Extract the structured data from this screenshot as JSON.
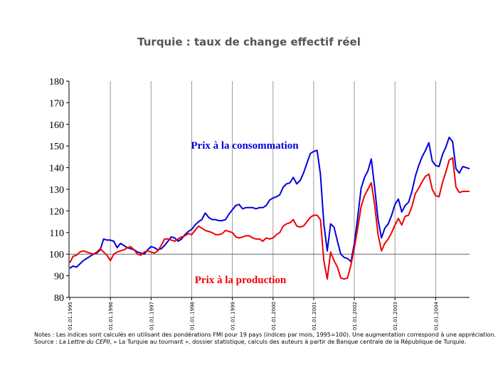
{
  "title": "Turquie : taux de change effectif réel",
  "notes": {
    "line1": "Notes : Les indices sont calculés en utilisant des pondérations FMI pour 19 pays (indices par mois, 1995=100). Une augmentation correspond à une appréciation.",
    "line2_prefix": "Source : ",
    "line2_source": "La Lettre du CEPII",
    "line2_rest": ", « La Turquie au  tournant »,  dossier statistique, calculs des auteurs à partir de Banque centrale de la République de Turquie."
  },
  "chart_data": {
    "type": "line",
    "title": "Turquie : taux de change effectif réel",
    "xlabel": "",
    "ylabel": "",
    "ylim": [
      80,
      180
    ],
    "xlim": [
      "1995-01",
      "2004-11"
    ],
    "yticks": [
      "80",
      "90",
      "100",
      "110",
      "120",
      "130",
      "140",
      "150",
      "160",
      "170",
      "180"
    ],
    "xticks": [
      {
        "date": "1995-01",
        "label": "01.01.1995"
      },
      {
        "date": "1996-01",
        "label": "01.01.1996"
      },
      {
        "date": "1997-01",
        "label": "01.01.1997"
      },
      {
        "date": "1998-01",
        "label": "01.01.1998"
      },
      {
        "date": "1999-01",
        "label": "01.01.1999"
      },
      {
        "date": "2000-01",
        "label": "01.01.2000"
      },
      {
        "date": "2001-01",
        "label": "01.01.2001"
      },
      {
        "date": "2002-01",
        "label": "01.01.2002"
      },
      {
        "date": "2003-01",
        "label": "01.01.2003"
      },
      {
        "date": "2004-01",
        "label": "01.01.2004"
      }
    ],
    "reference_line": 100,
    "grid": "vertical lines at year ticks",
    "series": [
      {
        "name": "Prix à la consommation",
        "color": "#0000dd",
        "points": [
          [
            "1995-01",
            93.5
          ],
          [
            "1995-02",
            94.5
          ],
          [
            "1995-03",
            94
          ],
          [
            "1995-04",
            95.5
          ],
          [
            "1995-05",
            97
          ],
          [
            "1995-06",
            98
          ],
          [
            "1995-07",
            99
          ],
          [
            "1995-08",
            100
          ],
          [
            "1995-09",
            100.5
          ],
          [
            "1995-10",
            102
          ],
          [
            "1995-11",
            107
          ],
          [
            "1995-12",
            106.5
          ],
          [
            "1996-01",
            106.5
          ],
          [
            "1996-02",
            106
          ],
          [
            "1996-03",
            103
          ],
          [
            "1996-04",
            105
          ],
          [
            "1996-05",
            104
          ],
          [
            "1996-06",
            103
          ],
          [
            "1996-07",
            102.5
          ],
          [
            "1996-08",
            102
          ],
          [
            "1996-09",
            101
          ],
          [
            "1996-10",
            100.5
          ],
          [
            "1996-11",
            100
          ],
          [
            "1996-12",
            102
          ],
          [
            "1997-01",
            103.5
          ],
          [
            "1997-02",
            103
          ],
          [
            "1997-03",
            102
          ],
          [
            "1997-04",
            102.5
          ],
          [
            "1997-05",
            104
          ],
          [
            "1997-06",
            106
          ],
          [
            "1997-07",
            108
          ],
          [
            "1997-08",
            107.5
          ],
          [
            "1997-09",
            106
          ],
          [
            "1997-10",
            107
          ],
          [
            "1997-11",
            109
          ],
          [
            "1997-12",
            110.5
          ],
          [
            "1998-01",
            111.5
          ],
          [
            "1998-02",
            113.5
          ],
          [
            "1998-03",
            115
          ],
          [
            "1998-04",
            116
          ],
          [
            "1998-05",
            119
          ],
          [
            "1998-06",
            117
          ],
          [
            "1998-07",
            116
          ],
          [
            "1998-08",
            116
          ],
          [
            "1998-09",
            115.5
          ],
          [
            "1998-10",
            115.5
          ],
          [
            "1998-11",
            116
          ],
          [
            "1998-12",
            118.5
          ],
          [
            "1999-01",
            120.5
          ],
          [
            "1999-02",
            122.5
          ],
          [
            "1999-03",
            123
          ],
          [
            "1999-04",
            121
          ],
          [
            "1999-05",
            121.5
          ],
          [
            "1999-06",
            121.5
          ],
          [
            "1999-07",
            121.5
          ],
          [
            "1999-08",
            121
          ],
          [
            "1999-09",
            121.5
          ],
          [
            "1999-10",
            121.5
          ],
          [
            "1999-11",
            122.5
          ],
          [
            "1999-12",
            125
          ],
          [
            "2000-01",
            126
          ],
          [
            "2000-02",
            126.5
          ],
          [
            "2000-03",
            127.5
          ],
          [
            "2000-04",
            131
          ],
          [
            "2000-05",
            132.5
          ],
          [
            "2000-06",
            133
          ],
          [
            "2000-07",
            135.5
          ],
          [
            "2000-08",
            132.5
          ],
          [
            "2000-09",
            134
          ],
          [
            "2000-10",
            137.5
          ],
          [
            "2000-11",
            142
          ],
          [
            "2000-12",
            146.5
          ],
          [
            "2001-01",
            147.5
          ],
          [
            "2001-02",
            148
          ],
          [
            "2001-03",
            137
          ],
          [
            "2001-04",
            114
          ],
          [
            "2001-05",
            101.5
          ],
          [
            "2001-06",
            114
          ],
          [
            "2001-07",
            112.5
          ],
          [
            "2001-08",
            106
          ],
          [
            "2001-09",
            100
          ],
          [
            "2001-10",
            98.5
          ],
          [
            "2001-11",
            98
          ],
          [
            "2001-12",
            96.5
          ],
          [
            "2002-01",
            105
          ],
          [
            "2002-02",
            117
          ],
          [
            "2002-03",
            130.5
          ],
          [
            "2002-04",
            135.5
          ],
          [
            "2002-05",
            138.5
          ],
          [
            "2002-06",
            144
          ],
          [
            "2002-07",
            131
          ],
          [
            "2002-08",
            116
          ],
          [
            "2002-09",
            107.5
          ],
          [
            "2002-10",
            112
          ],
          [
            "2002-11",
            114
          ],
          [
            "2002-12",
            118
          ],
          [
            "2003-01",
            123
          ],
          [
            "2003-02",
            125.5
          ],
          [
            "2003-03",
            119.5
          ],
          [
            "2003-04",
            122.5
          ],
          [
            "2003-05",
            124
          ],
          [
            "2003-06",
            129
          ],
          [
            "2003-07",
            136
          ],
          [
            "2003-08",
            141
          ],
          [
            "2003-09",
            145
          ],
          [
            "2003-10",
            148
          ],
          [
            "2003-11",
            151.5
          ],
          [
            "2003-12",
            143
          ],
          [
            "2004-01",
            141
          ],
          [
            "2004-02",
            140.5
          ],
          [
            "2004-03",
            146
          ],
          [
            "2004-04",
            149.5
          ],
          [
            "2004-05",
            154
          ],
          [
            "2004-06",
            152
          ],
          [
            "2004-07",
            139.5
          ],
          [
            "2004-08",
            137.5
          ],
          [
            "2004-09",
            140.5
          ],
          [
            "2004-10",
            140
          ],
          [
            "2004-11",
            139.5
          ]
        ]
      },
      {
        "name": "Prix à la production",
        "color": "#ee0000",
        "points": [
          [
            "1995-01",
            96
          ],
          [
            "1995-02",
            99
          ],
          [
            "1995-03",
            99.5
          ],
          [
            "1995-04",
            101
          ],
          [
            "1995-05",
            101.5
          ],
          [
            "1995-06",
            101
          ],
          [
            "1995-07",
            100.5
          ],
          [
            "1995-08",
            100
          ],
          [
            "1995-09",
            101
          ],
          [
            "1995-10",
            102.5
          ],
          [
            "1995-11",
            101
          ],
          [
            "1995-12",
            99.5
          ],
          [
            "1996-01",
            97
          ],
          [
            "1996-02",
            100
          ],
          [
            "1996-03",
            101
          ],
          [
            "1996-04",
            101.5
          ],
          [
            "1996-05",
            102
          ],
          [
            "1996-06",
            103
          ],
          [
            "1996-07",
            103.5
          ],
          [
            "1996-08",
            102
          ],
          [
            "1996-09",
            100
          ],
          [
            "1996-10",
            99.5
          ],
          [
            "1996-11",
            101
          ],
          [
            "1996-12",
            101.5
          ],
          [
            "1997-01",
            101
          ],
          [
            "1997-02",
            100.5
          ],
          [
            "1997-03",
            101.5
          ],
          [
            "1997-04",
            104
          ],
          [
            "1997-05",
            107
          ],
          [
            "1997-06",
            107
          ],
          [
            "1997-07",
            106.5
          ],
          [
            "1997-08",
            106
          ],
          [
            "1997-09",
            107
          ],
          [
            "1997-10",
            108
          ],
          [
            "1997-11",
            108.5
          ],
          [
            "1997-12",
            109.5
          ],
          [
            "1998-01",
            109
          ],
          [
            "1998-02",
            111
          ],
          [
            "1998-03",
            113
          ],
          [
            "1998-04",
            112
          ],
          [
            "1998-05",
            111
          ],
          [
            "1998-06",
            110.5
          ],
          [
            "1998-07",
            110
          ],
          [
            "1998-08",
            109
          ],
          [
            "1998-09",
            109
          ],
          [
            "1998-10",
            109.5
          ],
          [
            "1998-11",
            111
          ],
          [
            "1998-12",
            110.5
          ],
          [
            "1999-01",
            110
          ],
          [
            "1999-02",
            108
          ],
          [
            "1999-03",
            107.5
          ],
          [
            "1999-04",
            108
          ],
          [
            "1999-05",
            108.5
          ],
          [
            "1999-06",
            108.5
          ],
          [
            "1999-07",
            107.5
          ],
          [
            "1999-08",
            107
          ],
          [
            "1999-09",
            107
          ],
          [
            "1999-10",
            106
          ],
          [
            "1999-11",
            107.5
          ],
          [
            "1999-12",
            107
          ],
          [
            "2000-01",
            107.5
          ],
          [
            "2000-02",
            109
          ],
          [
            "2000-03",
            110
          ],
          [
            "2000-04",
            113
          ],
          [
            "2000-05",
            114
          ],
          [
            "2000-06",
            114.5
          ],
          [
            "2000-07",
            116
          ],
          [
            "2000-08",
            113
          ],
          [
            "2000-09",
            112.5
          ],
          [
            "2000-10",
            113
          ],
          [
            "2000-11",
            115
          ],
          [
            "2000-12",
            117
          ],
          [
            "2001-01",
            118
          ],
          [
            "2001-02",
            118
          ],
          [
            "2001-03",
            116
          ],
          [
            "2001-04",
            97
          ],
          [
            "2001-05",
            88.5
          ],
          [
            "2001-06",
            101
          ],
          [
            "2001-07",
            97
          ],
          [
            "2001-08",
            94
          ],
          [
            "2001-09",
            89
          ],
          [
            "2001-10",
            88.5
          ],
          [
            "2001-11",
            89
          ],
          [
            "2001-12",
            95
          ],
          [
            "2002-01",
            103
          ],
          [
            "2002-02",
            112
          ],
          [
            "2002-03",
            122
          ],
          [
            "2002-04",
            127
          ],
          [
            "2002-05",
            130
          ],
          [
            "2002-06",
            133
          ],
          [
            "2002-07",
            123
          ],
          [
            "2002-08",
            109
          ],
          [
            "2002-09",
            101.5
          ],
          [
            "2002-10",
            105
          ],
          [
            "2002-11",
            107
          ],
          [
            "2002-12",
            110
          ],
          [
            "2003-01",
            113.5
          ],
          [
            "2003-02",
            116.5
          ],
          [
            "2003-03",
            113.5
          ],
          [
            "2003-04",
            117.5
          ],
          [
            "2003-05",
            118
          ],
          [
            "2003-06",
            122
          ],
          [
            "2003-07",
            128
          ],
          [
            "2003-08",
            130.5
          ],
          [
            "2003-09",
            133.5
          ],
          [
            "2003-10",
            136
          ],
          [
            "2003-11",
            137
          ],
          [
            "2003-12",
            130
          ],
          [
            "2004-01",
            127
          ],
          [
            "2004-02",
            126.5
          ],
          [
            "2004-03",
            133
          ],
          [
            "2004-04",
            138
          ],
          [
            "2004-05",
            143.5
          ],
          [
            "2004-06",
            144.5
          ],
          [
            "2004-07",
            131
          ],
          [
            "2004-08",
            128.5
          ],
          [
            "2004-09",
            129
          ],
          [
            "2004-10",
            129
          ],
          [
            "2004-11",
            129
          ]
        ]
      }
    ],
    "annotations": [
      {
        "text": "Prix à la consommation",
        "color": "#0000dd"
      },
      {
        "text": "Prix à la production",
        "color": "#ee0000"
      }
    ]
  }
}
